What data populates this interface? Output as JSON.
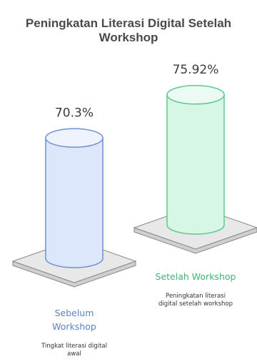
{
  "chart_data": {
    "type": "bar",
    "title_lines": [
      "Peningkatan Literasi Digital Setelah",
      "Workshop"
    ],
    "categories": [
      "Sebelum Workshop",
      "Setelah Workshop"
    ],
    "values": [
      70.3,
      75.92
    ],
    "value_labels": [
      "70.3%",
      "75.92%"
    ],
    "category_label_lines": [
      [
        "Sebelum",
        "Workshop"
      ],
      [
        "Setelah Workshop"
      ]
    ],
    "descriptions": [
      [
        "Tingkat literasi digital",
        "awal"
      ],
      [
        "Peningkatan literasi",
        "digital setelah workshop"
      ]
    ],
    "colors": [
      {
        "fill": "#dce7fb",
        "stroke": "#6f8fd6",
        "top": "#eef3fd",
        "label": "#5b7fd0"
      },
      {
        "fill": "#d6f6e6",
        "stroke": "#5cc98e",
        "top": "#ebfbf3",
        "label": "#3cb673"
      }
    ],
    "platform_color": "#e8e8e8",
    "platform_stroke": "#888888"
  }
}
